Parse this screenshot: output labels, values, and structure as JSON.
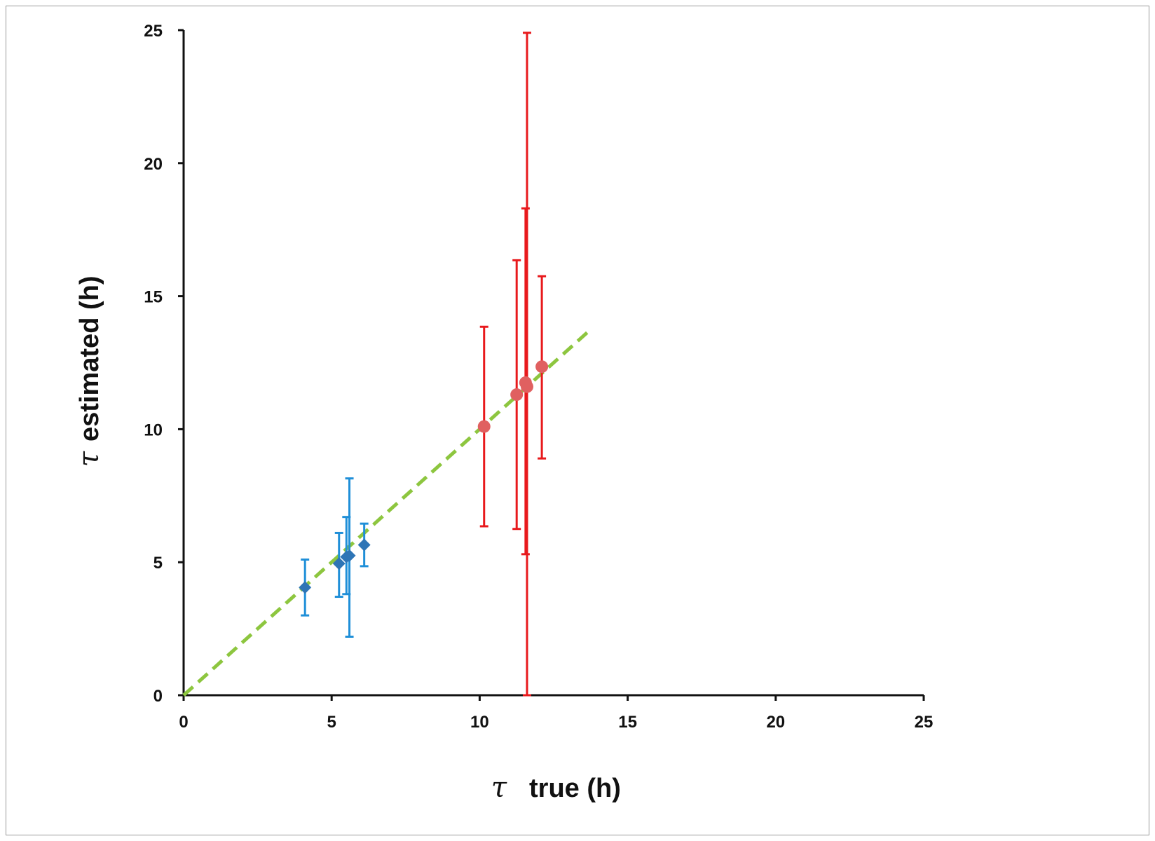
{
  "chart_data": {
    "type": "scatter",
    "title": "",
    "xlabel": {
      "symbol": "τ",
      "text": "true (h)"
    },
    "ylabel": {
      "symbol": "τ",
      "text": "estimated (h)"
    },
    "xlim": [
      0,
      25
    ],
    "ylim": [
      0,
      25
    ],
    "x_ticks": [
      0,
      5,
      10,
      15,
      20,
      25
    ],
    "y_ticks": [
      0,
      5,
      10,
      15,
      20,
      25
    ],
    "grid": false,
    "legend": "none",
    "reference_line": {
      "style": "dashed",
      "color": "#8DC63F",
      "x": [
        0,
        13.8
      ],
      "y": [
        0,
        13.8
      ]
    },
    "series": [
      {
        "marker": "diamond",
        "color": "#2E75B6",
        "errorbar_color": "#1F8FD8",
        "points": [
          {
            "x": 4.1,
            "y": 4.05,
            "y_low": 3.0,
            "y_high": 5.1
          },
          {
            "x": 5.25,
            "y": 4.95,
            "y_low": 3.7,
            "y_high": 6.1
          },
          {
            "x": 5.5,
            "y": 5.2,
            "y_low": 3.8,
            "y_high": 6.7
          },
          {
            "x": 5.6,
            "y": 5.25,
            "y_low": 2.2,
            "y_high": 8.15
          },
          {
            "x": 6.1,
            "y": 5.65,
            "y_low": 4.85,
            "y_high": 6.45
          }
        ]
      },
      {
        "marker": "circle",
        "color": "#E06060",
        "errorbar_color": "#E8191C",
        "points": [
          {
            "x": 10.15,
            "y": 10.1,
            "y_low": 6.35,
            "y_high": 13.85
          },
          {
            "x": 11.25,
            "y": 11.3,
            "y_low": 6.25,
            "y_high": 16.35
          },
          {
            "x": 11.55,
            "y": 11.75,
            "y_low": 5.3,
            "y_high": 18.3
          },
          {
            "x": 11.6,
            "y": 11.6,
            "y_low": 0.0,
            "y_high": 24.9
          },
          {
            "x": 12.1,
            "y": 12.35,
            "y_low": 8.9,
            "y_high": 15.75
          }
        ]
      }
    ]
  }
}
